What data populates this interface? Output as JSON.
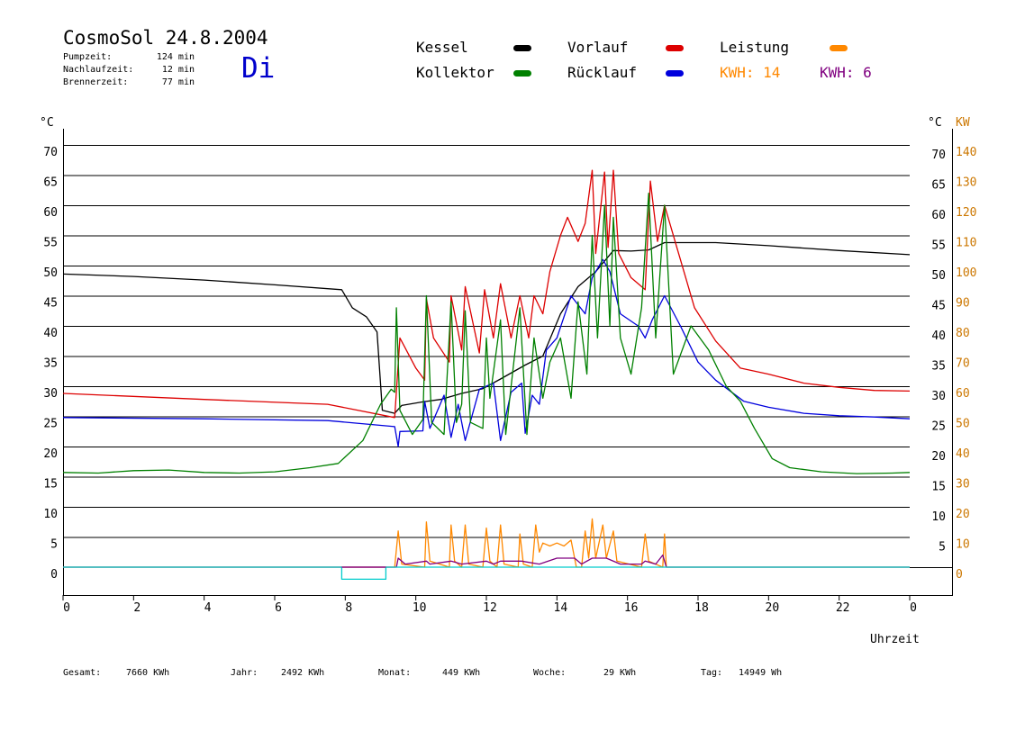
{
  "header": {
    "title": "CosmoSol 24.8.2004",
    "day": "Di",
    "info": [
      {
        "label": "Pumpzeit:",
        "value": "124 min"
      },
      {
        "label": "Nachlaufzeit:",
        "value": "12 min"
      },
      {
        "label": "Brennerzeit:",
        "value": "77 min"
      }
    ]
  },
  "legend": {
    "items": [
      {
        "label": "Kessel",
        "color": "#000000"
      },
      {
        "label": "Vorlauf",
        "color": "#dd0000"
      },
      {
        "label": "Leistung",
        "color": "#ff8800"
      },
      {
        "label": "Kollektor",
        "color": "#008000"
      },
      {
        "label": "Rücklauf",
        "color": "#0000dd"
      }
    ],
    "kwh_orange": "KWH: 14",
    "kwh_purple": "KWH: 6"
  },
  "footer": {
    "gesamt_label": "Gesamt:",
    "gesamt_value": "7660 KWh",
    "jahr_label": "Jahr:",
    "jahr_value": "2492 KWh",
    "monat_label": "Monat:",
    "monat_value": "449 KWh",
    "woche_label": "Woche:",
    "woche_value": "29 KWh",
    "tag_label": "Tag:",
    "tag_value": "14949 Wh"
  },
  "chart_data": {
    "type": "line",
    "xlabel": "Uhrzeit",
    "ylabel_left": "°C",
    "ylabel_right": "°C",
    "ylabel_right2": "KW",
    "xlim": [
      0,
      24
    ],
    "ylim": [
      0,
      70
    ],
    "y2lim": [
      0,
      140
    ],
    "grid": true,
    "x_ticks": [
      "0",
      "2",
      "4",
      "6",
      "8",
      "10",
      "12",
      "14",
      "16",
      "18",
      "20",
      "22",
      "0"
    ],
    "y_ticks_left": [
      "0",
      "5",
      "10",
      "15",
      "20",
      "25",
      "30",
      "35",
      "40",
      "45",
      "50",
      "55",
      "60",
      "65",
      "70"
    ],
    "y_ticks_right": [
      "5",
      "10",
      "15",
      "20",
      "25",
      "30",
      "35",
      "40",
      "45",
      "50",
      "55",
      "60",
      "65",
      "70"
    ],
    "y2_ticks": [
      "0",
      "10",
      "20",
      "30",
      "40",
      "50",
      "60",
      "70",
      "80",
      "90",
      "100",
      "110",
      "120",
      "130",
      "140"
    ],
    "series": [
      {
        "name": "Kessel",
        "color": "#000000",
        "points": [
          [
            0,
            48.6
          ],
          [
            2,
            48.2
          ],
          [
            4,
            47.6
          ],
          [
            6,
            46.8
          ],
          [
            7.9,
            46
          ],
          [
            8.2,
            43
          ],
          [
            8.6,
            41.5
          ],
          [
            8.9,
            39
          ],
          [
            9.05,
            26
          ],
          [
            9.4,
            25.5
          ],
          [
            9.6,
            26.8
          ],
          [
            10.2,
            27.4
          ],
          [
            10.7,
            27.8
          ],
          [
            11.3,
            28.8
          ],
          [
            11.9,
            29.6
          ],
          [
            12.4,
            31.2
          ],
          [
            13.1,
            33.5
          ],
          [
            13.6,
            35
          ],
          [
            14.1,
            42
          ],
          [
            14.6,
            46.5
          ],
          [
            15.1,
            49
          ],
          [
            15.6,
            52.5
          ],
          [
            16.1,
            52.4
          ],
          [
            16.6,
            52.6
          ],
          [
            17.05,
            53.8
          ],
          [
            18.5,
            53.8
          ],
          [
            20,
            53.3
          ],
          [
            22,
            52.5
          ],
          [
            24,
            51.8
          ]
        ]
      },
      {
        "name": "Vorlauf",
        "color": "#dd0000",
        "points": [
          [
            0,
            28.8
          ],
          [
            4,
            27.8
          ],
          [
            7.5,
            27
          ],
          [
            9.4,
            24.8
          ],
          [
            9.55,
            38
          ],
          [
            10,
            33
          ],
          [
            10.25,
            31
          ],
          [
            10.3,
            44.5
          ],
          [
            10.5,
            38
          ],
          [
            10.95,
            34
          ],
          [
            11.0,
            45
          ],
          [
            11.3,
            36
          ],
          [
            11.4,
            46.5
          ],
          [
            11.8,
            35.5
          ],
          [
            11.95,
            46
          ],
          [
            12.2,
            38
          ],
          [
            12.4,
            47
          ],
          [
            12.7,
            38
          ],
          [
            12.95,
            45
          ],
          [
            13.2,
            38
          ],
          [
            13.35,
            45
          ],
          [
            13.6,
            42
          ],
          [
            13.8,
            49
          ],
          [
            14.1,
            55
          ],
          [
            14.3,
            58
          ],
          [
            14.6,
            54
          ],
          [
            14.8,
            57
          ],
          [
            15.0,
            65.8
          ],
          [
            15.1,
            52
          ],
          [
            15.35,
            65.5
          ],
          [
            15.45,
            53
          ],
          [
            15.6,
            65.8
          ],
          [
            15.75,
            52
          ],
          [
            16.1,
            48
          ],
          [
            16.5,
            46
          ],
          [
            16.65,
            64
          ],
          [
            16.85,
            54
          ],
          [
            17.05,
            60
          ],
          [
            17.4,
            53
          ],
          [
            17.9,
            43
          ],
          [
            18.5,
            37.5
          ],
          [
            19.2,
            33
          ],
          [
            20,
            32
          ],
          [
            21,
            30.5
          ],
          [
            22,
            29.8
          ],
          [
            23,
            29.3
          ],
          [
            24,
            29.2
          ]
        ]
      },
      {
        "name": "Rücklauf",
        "color": "#0000dd",
        "points": [
          [
            0,
            24.8
          ],
          [
            4,
            24.6
          ],
          [
            7.5,
            24.3
          ],
          [
            9.4,
            23.3
          ],
          [
            9.5,
            20
          ],
          [
            9.55,
            22.5
          ],
          [
            10.2,
            22.6
          ],
          [
            10.25,
            27.5
          ],
          [
            10.4,
            23
          ],
          [
            10.8,
            28.5
          ],
          [
            11.0,
            21.5
          ],
          [
            11.2,
            27
          ],
          [
            11.4,
            21
          ],
          [
            11.8,
            29.5
          ],
          [
            12.2,
            30.5
          ],
          [
            12.4,
            21
          ],
          [
            12.7,
            29
          ],
          [
            13.0,
            30.5
          ],
          [
            13.1,
            22.2
          ],
          [
            13.3,
            28.5
          ],
          [
            13.5,
            27
          ],
          [
            13.7,
            36
          ],
          [
            14.0,
            38
          ],
          [
            14.4,
            45
          ],
          [
            14.8,
            42
          ],
          [
            15.0,
            48
          ],
          [
            15.3,
            51
          ],
          [
            15.5,
            49
          ],
          [
            15.8,
            42
          ],
          [
            16.3,
            40
          ],
          [
            16.5,
            38
          ],
          [
            16.7,
            41
          ],
          [
            17.05,
            45
          ],
          [
            17.5,
            40
          ],
          [
            18.0,
            34
          ],
          [
            18.5,
            31
          ],
          [
            19.3,
            27.5
          ],
          [
            20,
            26.5
          ],
          [
            21,
            25.5
          ],
          [
            22,
            25.1
          ],
          [
            23,
            24.9
          ],
          [
            24,
            24.6
          ]
        ]
      },
      {
        "name": "Kollektor",
        "color": "#008000",
        "points": [
          [
            0,
            15.7
          ],
          [
            1,
            15.6
          ],
          [
            2,
            16
          ],
          [
            3,
            16.1
          ],
          [
            4,
            15.7
          ],
          [
            5,
            15.6
          ],
          [
            6,
            15.8
          ],
          [
            7,
            16.5
          ],
          [
            7.8,
            17.2
          ],
          [
            8.5,
            21
          ],
          [
            9,
            27
          ],
          [
            9.3,
            29.5
          ],
          [
            9.4,
            29
          ],
          [
            9.45,
            43
          ],
          [
            9.55,
            26
          ],
          [
            9.9,
            22
          ],
          [
            10.2,
            24.5
          ],
          [
            10.3,
            45
          ],
          [
            10.45,
            24
          ],
          [
            10.8,
            22
          ],
          [
            11.0,
            44
          ],
          [
            11.15,
            24
          ],
          [
            11.3,
            27
          ],
          [
            11.4,
            42.5
          ],
          [
            11.55,
            24
          ],
          [
            11.9,
            23
          ],
          [
            12.0,
            38
          ],
          [
            12.1,
            28
          ],
          [
            12.4,
            41
          ],
          [
            12.55,
            22
          ],
          [
            12.95,
            43
          ],
          [
            13.15,
            22
          ],
          [
            13.35,
            38
          ],
          [
            13.6,
            28
          ],
          [
            13.8,
            34
          ],
          [
            14.1,
            38
          ],
          [
            14.4,
            28
          ],
          [
            14.6,
            44
          ],
          [
            14.85,
            32
          ],
          [
            15.0,
            55
          ],
          [
            15.15,
            38
          ],
          [
            15.35,
            60
          ],
          [
            15.5,
            40
          ],
          [
            15.6,
            58
          ],
          [
            15.8,
            38
          ],
          [
            16.1,
            32
          ],
          [
            16.4,
            43
          ],
          [
            16.6,
            62
          ],
          [
            16.8,
            38
          ],
          [
            17.05,
            60
          ],
          [
            17.3,
            32
          ],
          [
            17.8,
            40
          ],
          [
            18.3,
            36
          ],
          [
            18.8,
            30
          ],
          [
            19.2,
            27.5
          ],
          [
            19.6,
            23
          ],
          [
            20.1,
            18
          ],
          [
            20.6,
            16.5
          ],
          [
            21.5,
            15.8
          ],
          [
            22.5,
            15.5
          ],
          [
            23.5,
            15.6
          ],
          [
            24,
            15.7
          ]
        ]
      },
      {
        "name": "Leistung",
        "color": "#ff8800",
        "unit": "KW",
        "points": [
          [
            0,
            0
          ],
          [
            9.4,
            0
          ],
          [
            9.5,
            12
          ],
          [
            9.6,
            1
          ],
          [
            10.25,
            0
          ],
          [
            10.3,
            15
          ],
          [
            10.4,
            2
          ],
          [
            10.95,
            0
          ],
          [
            11.0,
            14
          ],
          [
            11.1,
            2
          ],
          [
            11.3,
            0
          ],
          [
            11.4,
            14
          ],
          [
            11.5,
            1
          ],
          [
            11.9,
            0
          ],
          [
            12.0,
            13
          ],
          [
            12.1,
            2
          ],
          [
            12.3,
            0
          ],
          [
            12.4,
            14
          ],
          [
            12.5,
            1
          ],
          [
            12.9,
            0
          ],
          [
            12.95,
            11
          ],
          [
            13.05,
            1
          ],
          [
            13.3,
            0
          ],
          [
            13.4,
            14
          ],
          [
            13.5,
            5
          ],
          [
            13.6,
            8
          ],
          [
            13.8,
            7
          ],
          [
            14.0,
            8
          ],
          [
            14.2,
            7
          ],
          [
            14.4,
            9
          ],
          [
            14.55,
            0
          ],
          [
            14.7,
            0
          ],
          [
            14.8,
            12
          ],
          [
            14.9,
            3
          ],
          [
            15.0,
            16
          ],
          [
            15.1,
            3
          ],
          [
            15.3,
            14
          ],
          [
            15.4,
            3
          ],
          [
            15.6,
            12
          ],
          [
            15.7,
            2
          ],
          [
            16.4,
            0
          ],
          [
            16.5,
            11
          ],
          [
            16.6,
            2
          ],
          [
            17.0,
            0
          ],
          [
            17.05,
            11
          ],
          [
            17.1,
            0
          ],
          [
            24,
            0
          ]
        ]
      },
      {
        "name": "",
        "color": "#800080",
        "unit": "KW",
        "points": [
          [
            0,
            0
          ],
          [
            9.45,
            0
          ],
          [
            9.5,
            3
          ],
          [
            9.7,
            1
          ],
          [
            10.3,
            2
          ],
          [
            10.4,
            1
          ],
          [
            11.0,
            2
          ],
          [
            11.3,
            1
          ],
          [
            12.0,
            2
          ],
          [
            12.2,
            1
          ],
          [
            12.4,
            2
          ],
          [
            13.0,
            2
          ],
          [
            13.5,
            1
          ],
          [
            14.0,
            3
          ],
          [
            14.5,
            3
          ],
          [
            14.7,
            1
          ],
          [
            15.0,
            3
          ],
          [
            15.4,
            3
          ],
          [
            15.8,
            1
          ],
          [
            16.4,
            1
          ],
          [
            16.5,
            2
          ],
          [
            16.8,
            1
          ],
          [
            17.0,
            4
          ],
          [
            17.1,
            0
          ],
          [
            24,
            0
          ]
        ]
      },
      {
        "name": "",
        "color": "#00cccc",
        "points": [
          [
            0,
            0
          ],
          [
            7.9,
            0
          ],
          [
            7.9,
            -2
          ],
          [
            9.15,
            -2
          ],
          [
            9.15,
            0
          ],
          [
            24,
            0
          ]
        ]
      },
      {
        "name": "",
        "color": "#800080",
        "points": [
          [
            7.9,
            0
          ],
          [
            9.15,
            0
          ]
        ]
      }
    ]
  }
}
